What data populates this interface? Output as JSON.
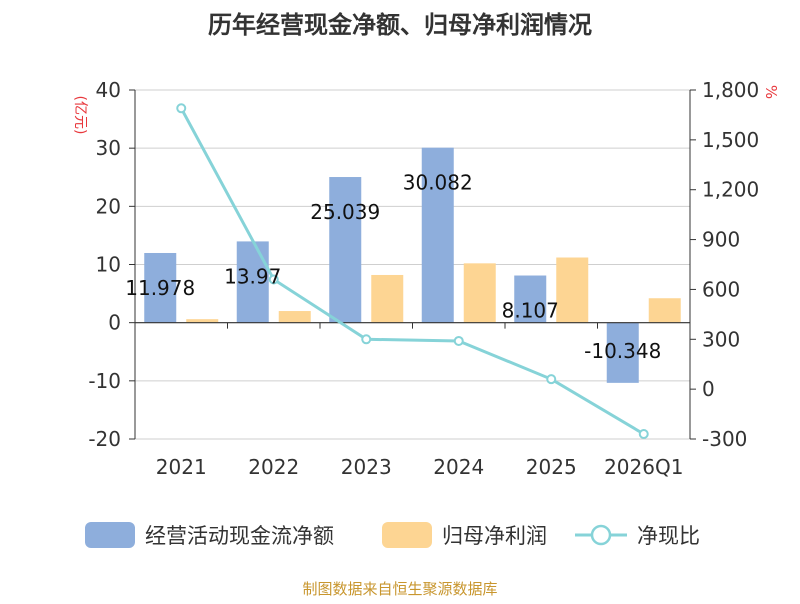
{
  "chart_data": {
    "type": "bar+line",
    "title": "历年经营现金净额、归母净利润情况",
    "categories": [
      "2021",
      "2022",
      "2023",
      "2024",
      "2025",
      "2026Q1"
    ],
    "series": [
      {
        "name": "经营活动现金流净额",
        "type": "bar",
        "axis": "left",
        "color": "#8eaedc",
        "values": [
          11.978,
          13.97,
          25.039,
          30.082,
          8.107,
          -10.348
        ],
        "labels": [
          "11.978",
          "13.97",
          "25.039",
          "30.082",
          "8.107",
          "-10.348"
        ]
      },
      {
        "name": "归母净利润",
        "type": "bar",
        "axis": "left",
        "color": "#fdd593",
        "values": [
          0.6,
          2.0,
          8.2,
          10.2,
          11.2,
          4.2
        ]
      },
      {
        "name": "净现比",
        "type": "line",
        "axis": "right",
        "color": "#86d3d8",
        "values": [
          1690,
          660,
          300,
          290,
          60,
          -270
        ]
      }
    ],
    "y_left": {
      "unit": "(亿元)",
      "min": -20,
      "max": 40,
      "ticks": [
        "-20",
        "-10",
        "0",
        "10",
        "20",
        "30",
        "40"
      ]
    },
    "y_right": {
      "unit": "%",
      "min": -300,
      "max": 1800,
      "ticks": [
        "-300",
        "0",
        "300",
        "600",
        "900",
        "1,200",
        "1,500",
        "1,800"
      ]
    },
    "legend_position": "bottom",
    "grid": true
  },
  "source": "制图数据来自恒生聚源数据库"
}
